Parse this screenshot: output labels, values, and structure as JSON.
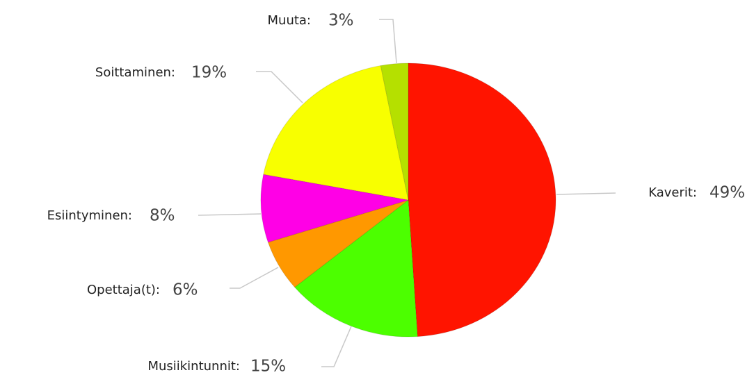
{
  "chart_data": {
    "type": "pie",
    "categories": [
      "Kaverit:",
      "Musiikintunnit:",
      "Opettaja(t):",
      "Esiintyminen:",
      "Soittaminen:",
      "Muuta:"
    ],
    "values": [
      49,
      15,
      6,
      8,
      19,
      3
    ],
    "value_labels": [
      "49%",
      "15%",
      "6%",
      "8%",
      "19%",
      "3%"
    ],
    "colors": [
      "#ff1400",
      "#4cff00",
      "#ff9800",
      "#ff00e6",
      "#f8ff00",
      "#b5e000"
    ]
  }
}
